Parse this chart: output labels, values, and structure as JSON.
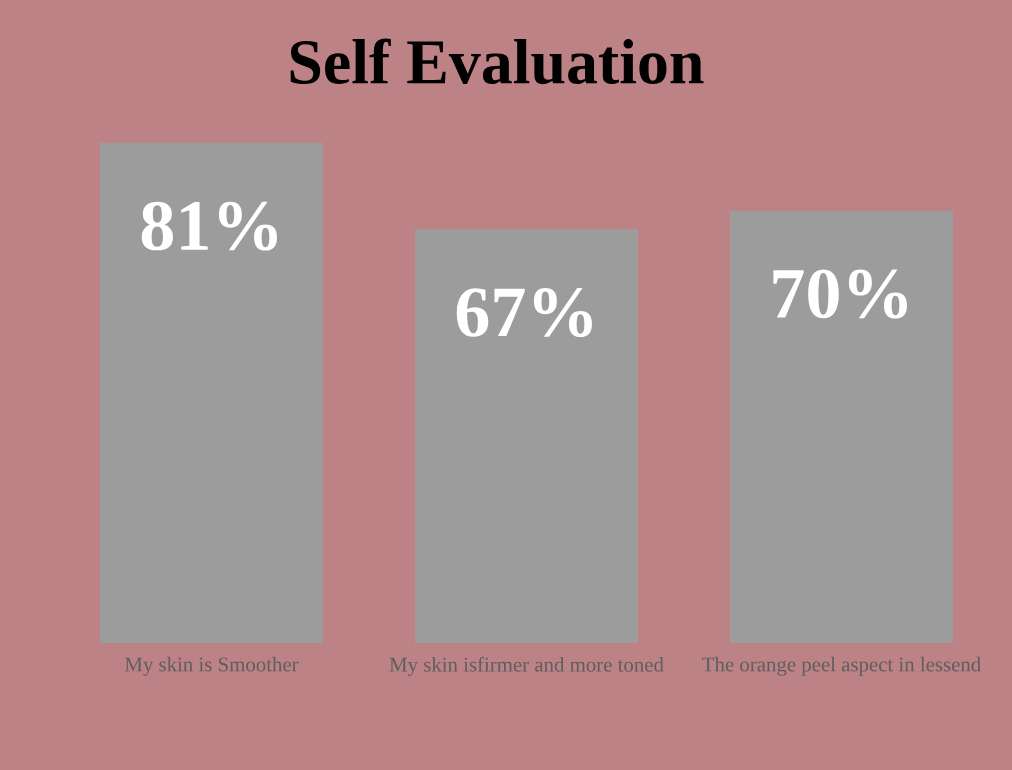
{
  "chart_data": {
    "type": "bar",
    "title": "Self Evaluation",
    "categories": [
      "My skin is Smoother",
      "My skin isfirmer and more toned",
      "The orange peel aspect in lessend"
    ],
    "values": [
      81,
      67,
      70
    ],
    "value_labels": [
      "81%",
      "67%",
      "70%"
    ],
    "color": "#9c9c9c"
  }
}
